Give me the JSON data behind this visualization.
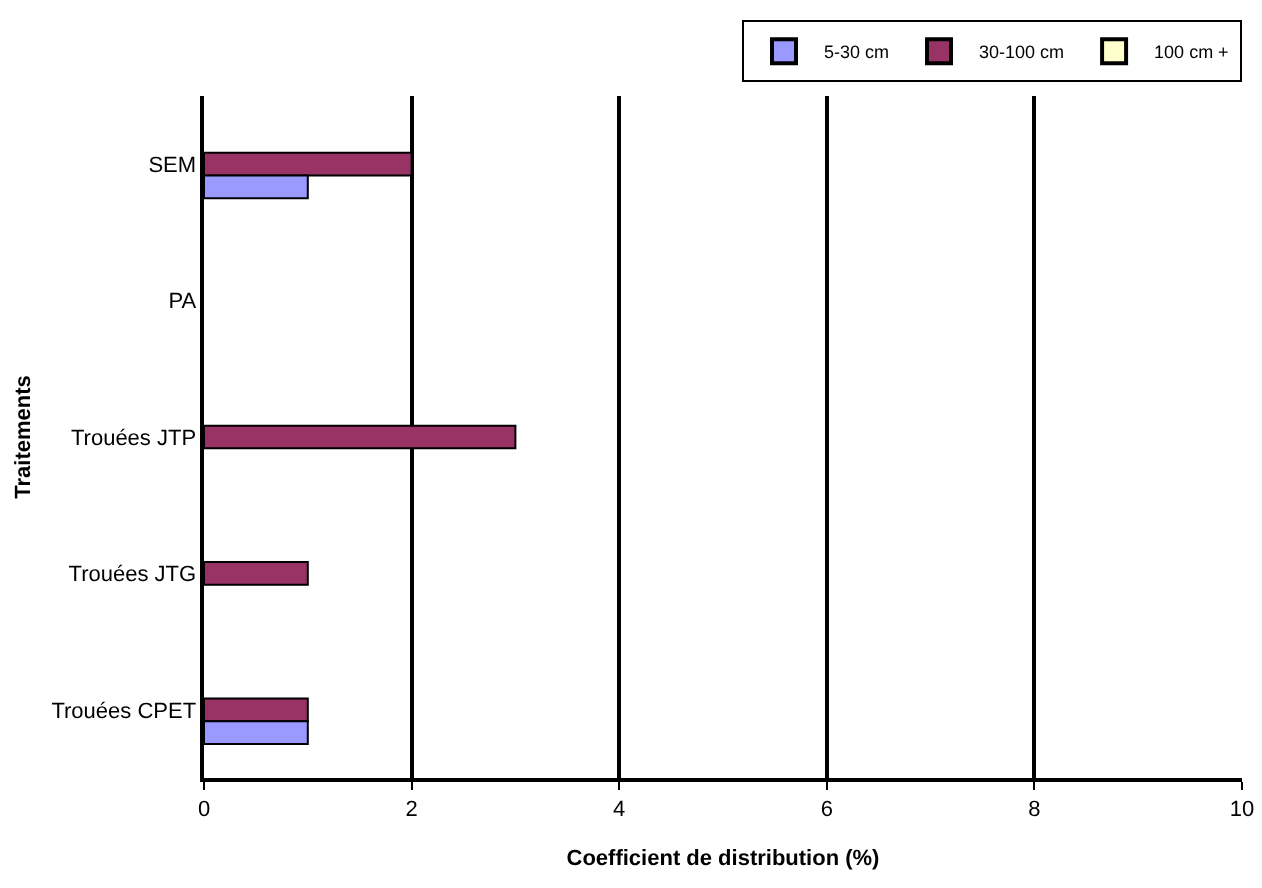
{
  "chart_data": {
    "type": "bar",
    "orientation": "horizontal",
    "xlabel": "Coefficient de distribution (%)",
    "ylabel": "Traitements",
    "categories": [
      "SEM",
      "PA",
      "Trouées JTP",
      "Trouées JTG",
      "Trouées CPET"
    ],
    "series": [
      {
        "name": "5-30 cm",
        "color": "#9999ff",
        "values": [
          1,
          null,
          null,
          null,
          1
        ]
      },
      {
        "name": "30-100 cm",
        "color": "#993366",
        "values": [
          2,
          null,
          3,
          1,
          1
        ]
      },
      {
        "name": "100 cm +",
        "color": "#ffffcc",
        "values": [
          null,
          null,
          null,
          null,
          null
        ]
      }
    ],
    "xlim": [
      0,
      10
    ],
    "xticks": [
      0,
      2,
      4,
      6,
      8,
      10
    ],
    "grid": "x",
    "legend": "top right"
  }
}
